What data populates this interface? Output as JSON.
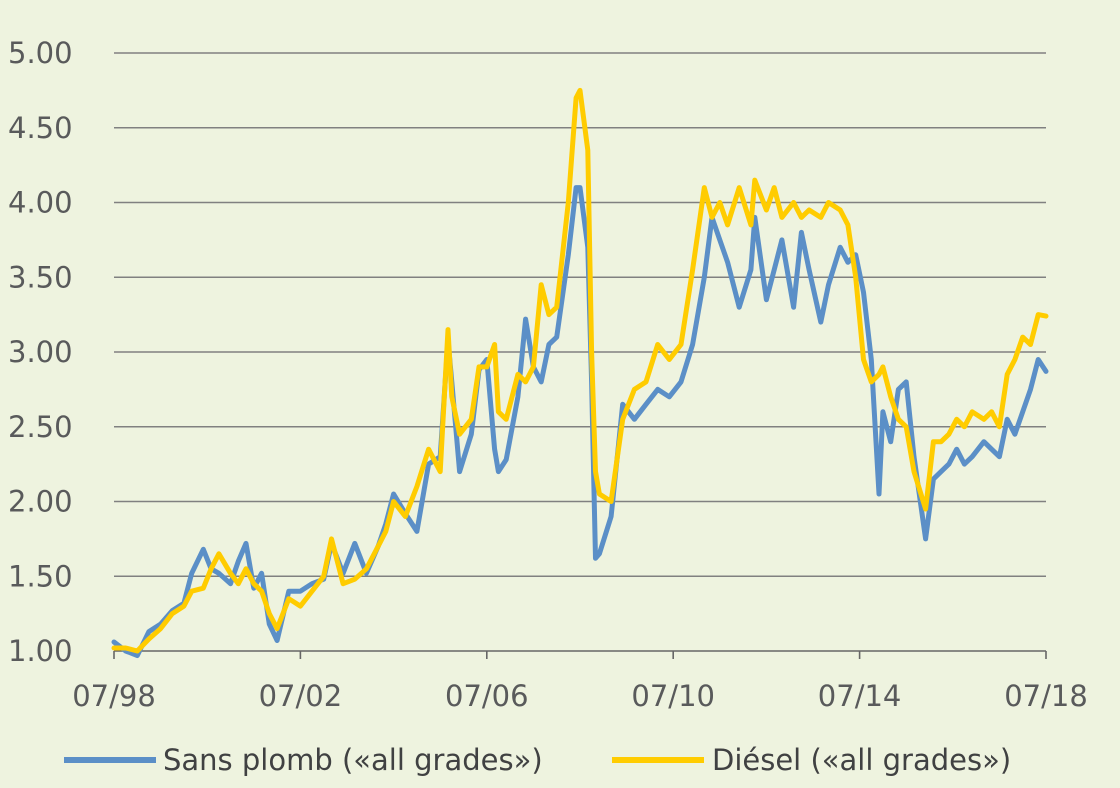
{
  "chart_data": {
    "type": "line",
    "title": "",
    "xlabel": "",
    "ylabel": "",
    "ylim": [
      1.0,
      5.0
    ],
    "x_start": "07/98",
    "x_end": "07/18",
    "x_ticks": [
      "07/98",
      "07/02",
      "07/06",
      "07/10",
      "07/14",
      "07/18"
    ],
    "y_ticks": [
      "1.00",
      "1.50",
      "2.00",
      "2.50",
      "3.00",
      "3.50",
      "4.00",
      "4.50",
      "5.00"
    ],
    "grid": true,
    "legend_position": "bottom",
    "colors": {
      "sans_plomb": "#5b8fc7",
      "diesel": "#ffcc00",
      "background": "#eef3df",
      "grid": "#808080",
      "axis": "#666666"
    },
    "series": [
      {
        "name": "Sans plomb («all grades»)",
        "key": "sans_plomb",
        "x": [
          "1998-07",
          "1998-10",
          "1999-01",
          "1999-04",
          "1999-07",
          "1999-10",
          "2000-01",
          "2000-03",
          "2000-06",
          "2000-08",
          "2000-10",
          "2001-01",
          "2001-03",
          "2001-05",
          "2001-07",
          "2001-09",
          "2001-11",
          "2002-01",
          "2002-04",
          "2002-07",
          "2002-10",
          "2003-01",
          "2003-03",
          "2003-06",
          "2003-09",
          "2003-12",
          "2004-03",
          "2004-05",
          "2004-07",
          "2004-10",
          "2005-01",
          "2005-04",
          "2005-07",
          "2005-09",
          "2005-10",
          "2005-12",
          "2006-03",
          "2006-05",
          "2006-07",
          "2006-09",
          "2006-10",
          "2006-12",
          "2007-03",
          "2007-05",
          "2007-07",
          "2007-09",
          "2007-11",
          "2008-01",
          "2008-04",
          "2008-06",
          "2008-07",
          "2008-09",
          "2008-10",
          "2008-11",
          "2008-12",
          "2009-03",
          "2009-06",
          "2009-09",
          "2009-12",
          "2010-03",
          "2010-06",
          "2010-09",
          "2010-12",
          "2011-03",
          "2011-05",
          "2011-07",
          "2011-09",
          "2011-12",
          "2012-03",
          "2012-04",
          "2012-07",
          "2012-09",
          "2012-11",
          "2013-02",
          "2013-04",
          "2013-06",
          "2013-09",
          "2013-11",
          "2014-02",
          "2014-04",
          "2014-06",
          "2014-08",
          "2014-10",
          "2014-12",
          "2015-01",
          "2015-03",
          "2015-05",
          "2015-07",
          "2015-09",
          "2015-12",
          "2016-02",
          "2016-04",
          "2016-06",
          "2016-08",
          "2016-10",
          "2016-12",
          "2017-03",
          "2017-05",
          "2017-07",
          "2017-09",
          "2017-11",
          "2018-01",
          "2018-03",
          "2018-05",
          "2018-07"
        ],
        "values": [
          1.06,
          1.0,
          0.97,
          1.13,
          1.18,
          1.27,
          1.32,
          1.52,
          1.68,
          1.55,
          1.52,
          1.45,
          1.6,
          1.72,
          1.42,
          1.52,
          1.18,
          1.07,
          1.4,
          1.4,
          1.45,
          1.48,
          1.72,
          1.52,
          1.72,
          1.52,
          1.7,
          1.85,
          2.05,
          1.92,
          1.8,
          2.25,
          2.3,
          3.08,
          2.8,
          2.2,
          2.45,
          2.88,
          2.95,
          2.35,
          2.2,
          2.28,
          2.7,
          3.22,
          2.9,
          2.8,
          3.05,
          3.1,
          3.65,
          4.1,
          4.1,
          3.7,
          2.8,
          1.62,
          1.65,
          1.9,
          2.65,
          2.55,
          2.65,
          2.75,
          2.7,
          2.8,
          3.05,
          3.5,
          3.9,
          3.75,
          3.6,
          3.3,
          3.55,
          3.9,
          3.35,
          3.55,
          3.75,
          3.3,
          3.8,
          3.55,
          3.2,
          3.45,
          3.7,
          3.6,
          3.65,
          3.4,
          2.95,
          2.05,
          2.6,
          2.4,
          2.75,
          2.8,
          2.3,
          1.75,
          2.15,
          2.2,
          2.25,
          2.35,
          2.25,
          2.3,
          2.4,
          2.35,
          2.3,
          2.55,
          2.45,
          2.6,
          2.75,
          2.95,
          2.87
        ]
      },
      {
        "name": "Diésel («all grades»)",
        "key": "diesel",
        "x": [
          "1998-07",
          "1998-10",
          "1999-01",
          "1999-04",
          "1999-07",
          "1999-10",
          "2000-01",
          "2000-03",
          "2000-06",
          "2000-08",
          "2000-10",
          "2001-01",
          "2001-03",
          "2001-05",
          "2001-07",
          "2001-09",
          "2001-11",
          "2002-01",
          "2002-04",
          "2002-07",
          "2002-10",
          "2003-01",
          "2003-03",
          "2003-06",
          "2003-09",
          "2003-12",
          "2004-03",
          "2004-05",
          "2004-07",
          "2004-10",
          "2005-01",
          "2005-04",
          "2005-07",
          "2005-09",
          "2005-10",
          "2005-12",
          "2006-03",
          "2006-05",
          "2006-07",
          "2006-09",
          "2006-10",
          "2006-12",
          "2007-03",
          "2007-05",
          "2007-07",
          "2007-09",
          "2007-11",
          "2008-01",
          "2008-04",
          "2008-06",
          "2008-07",
          "2008-09",
          "2008-10",
          "2008-11",
          "2008-12",
          "2009-03",
          "2009-06",
          "2009-09",
          "2009-12",
          "2010-03",
          "2010-06",
          "2010-09",
          "2010-12",
          "2011-03",
          "2011-05",
          "2011-07",
          "2011-09",
          "2011-12",
          "2012-03",
          "2012-04",
          "2012-07",
          "2012-09",
          "2012-11",
          "2013-02",
          "2013-04",
          "2013-06",
          "2013-09",
          "2013-11",
          "2014-02",
          "2014-04",
          "2014-06",
          "2014-08",
          "2014-10",
          "2014-12",
          "2015-01",
          "2015-03",
          "2015-05",
          "2015-07",
          "2015-09",
          "2015-12",
          "2016-02",
          "2016-04",
          "2016-06",
          "2016-08",
          "2016-10",
          "2016-12",
          "2017-03",
          "2017-05",
          "2017-07",
          "2017-09",
          "2017-11",
          "2018-01",
          "2018-03",
          "2018-05",
          "2018-07"
        ],
        "values": [
          1.02,
          1.02,
          1.0,
          1.08,
          1.15,
          1.25,
          1.3,
          1.4,
          1.42,
          1.55,
          1.65,
          1.52,
          1.45,
          1.55,
          1.45,
          1.4,
          1.25,
          1.15,
          1.35,
          1.3,
          1.4,
          1.5,
          1.75,
          1.45,
          1.48,
          1.55,
          1.7,
          1.8,
          2.0,
          1.9,
          2.1,
          2.35,
          2.2,
          3.15,
          2.7,
          2.45,
          2.55,
          2.9,
          2.9,
          3.05,
          2.6,
          2.55,
          2.85,
          2.8,
          2.9,
          3.45,
          3.25,
          3.3,
          4.0,
          4.7,
          4.75,
          4.35,
          3.0,
          2.2,
          2.05,
          2.0,
          2.55,
          2.75,
          2.8,
          3.05,
          2.95,
          3.05,
          3.55,
          4.1,
          3.9,
          4.0,
          3.85,
          4.1,
          3.85,
          4.15,
          3.95,
          4.1,
          3.9,
          4.0,
          3.9,
          3.95,
          3.9,
          4.0,
          3.95,
          3.85,
          3.5,
          2.95,
          2.8,
          2.85,
          2.9,
          2.7,
          2.55,
          2.5,
          2.2,
          1.95,
          2.4,
          2.4,
          2.45,
          2.55,
          2.5,
          2.6,
          2.55,
          2.6,
          2.5,
          2.85,
          2.95,
          3.1,
          3.05,
          3.25,
          3.24
        ]
      }
    ]
  }
}
